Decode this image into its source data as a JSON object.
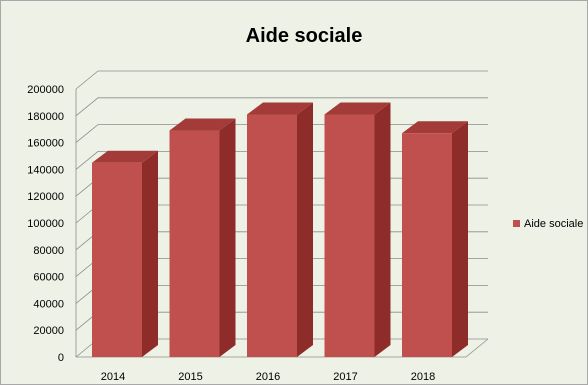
{
  "chart_data": {
    "type": "bar",
    "title": "Aide sociale",
    "xlabel": "",
    "ylabel": "",
    "categories": [
      "2014",
      "2015",
      "2016",
      "2017",
      "2018"
    ],
    "series": [
      {
        "name": "Aide sociale",
        "values": [
          145000,
          169000,
          181000,
          181000,
          167000
        ]
      }
    ],
    "ylim": [
      0,
      200000
    ],
    "yticks": [
      "0",
      "20000",
      "40000",
      "60000",
      "80000",
      "100000",
      "120000",
      "140000",
      "160000",
      "180000",
      "200000"
    ],
    "grid": true,
    "legend_position": "right",
    "style": "3d-column"
  },
  "colors": {
    "background": "#eef2e6",
    "bar_front": "#c0504d",
    "bar_side": "#8e2c2a",
    "bar_top": "#a33b38",
    "gridline": "#8c8c8c",
    "legend_swatch": "#c0504d"
  }
}
